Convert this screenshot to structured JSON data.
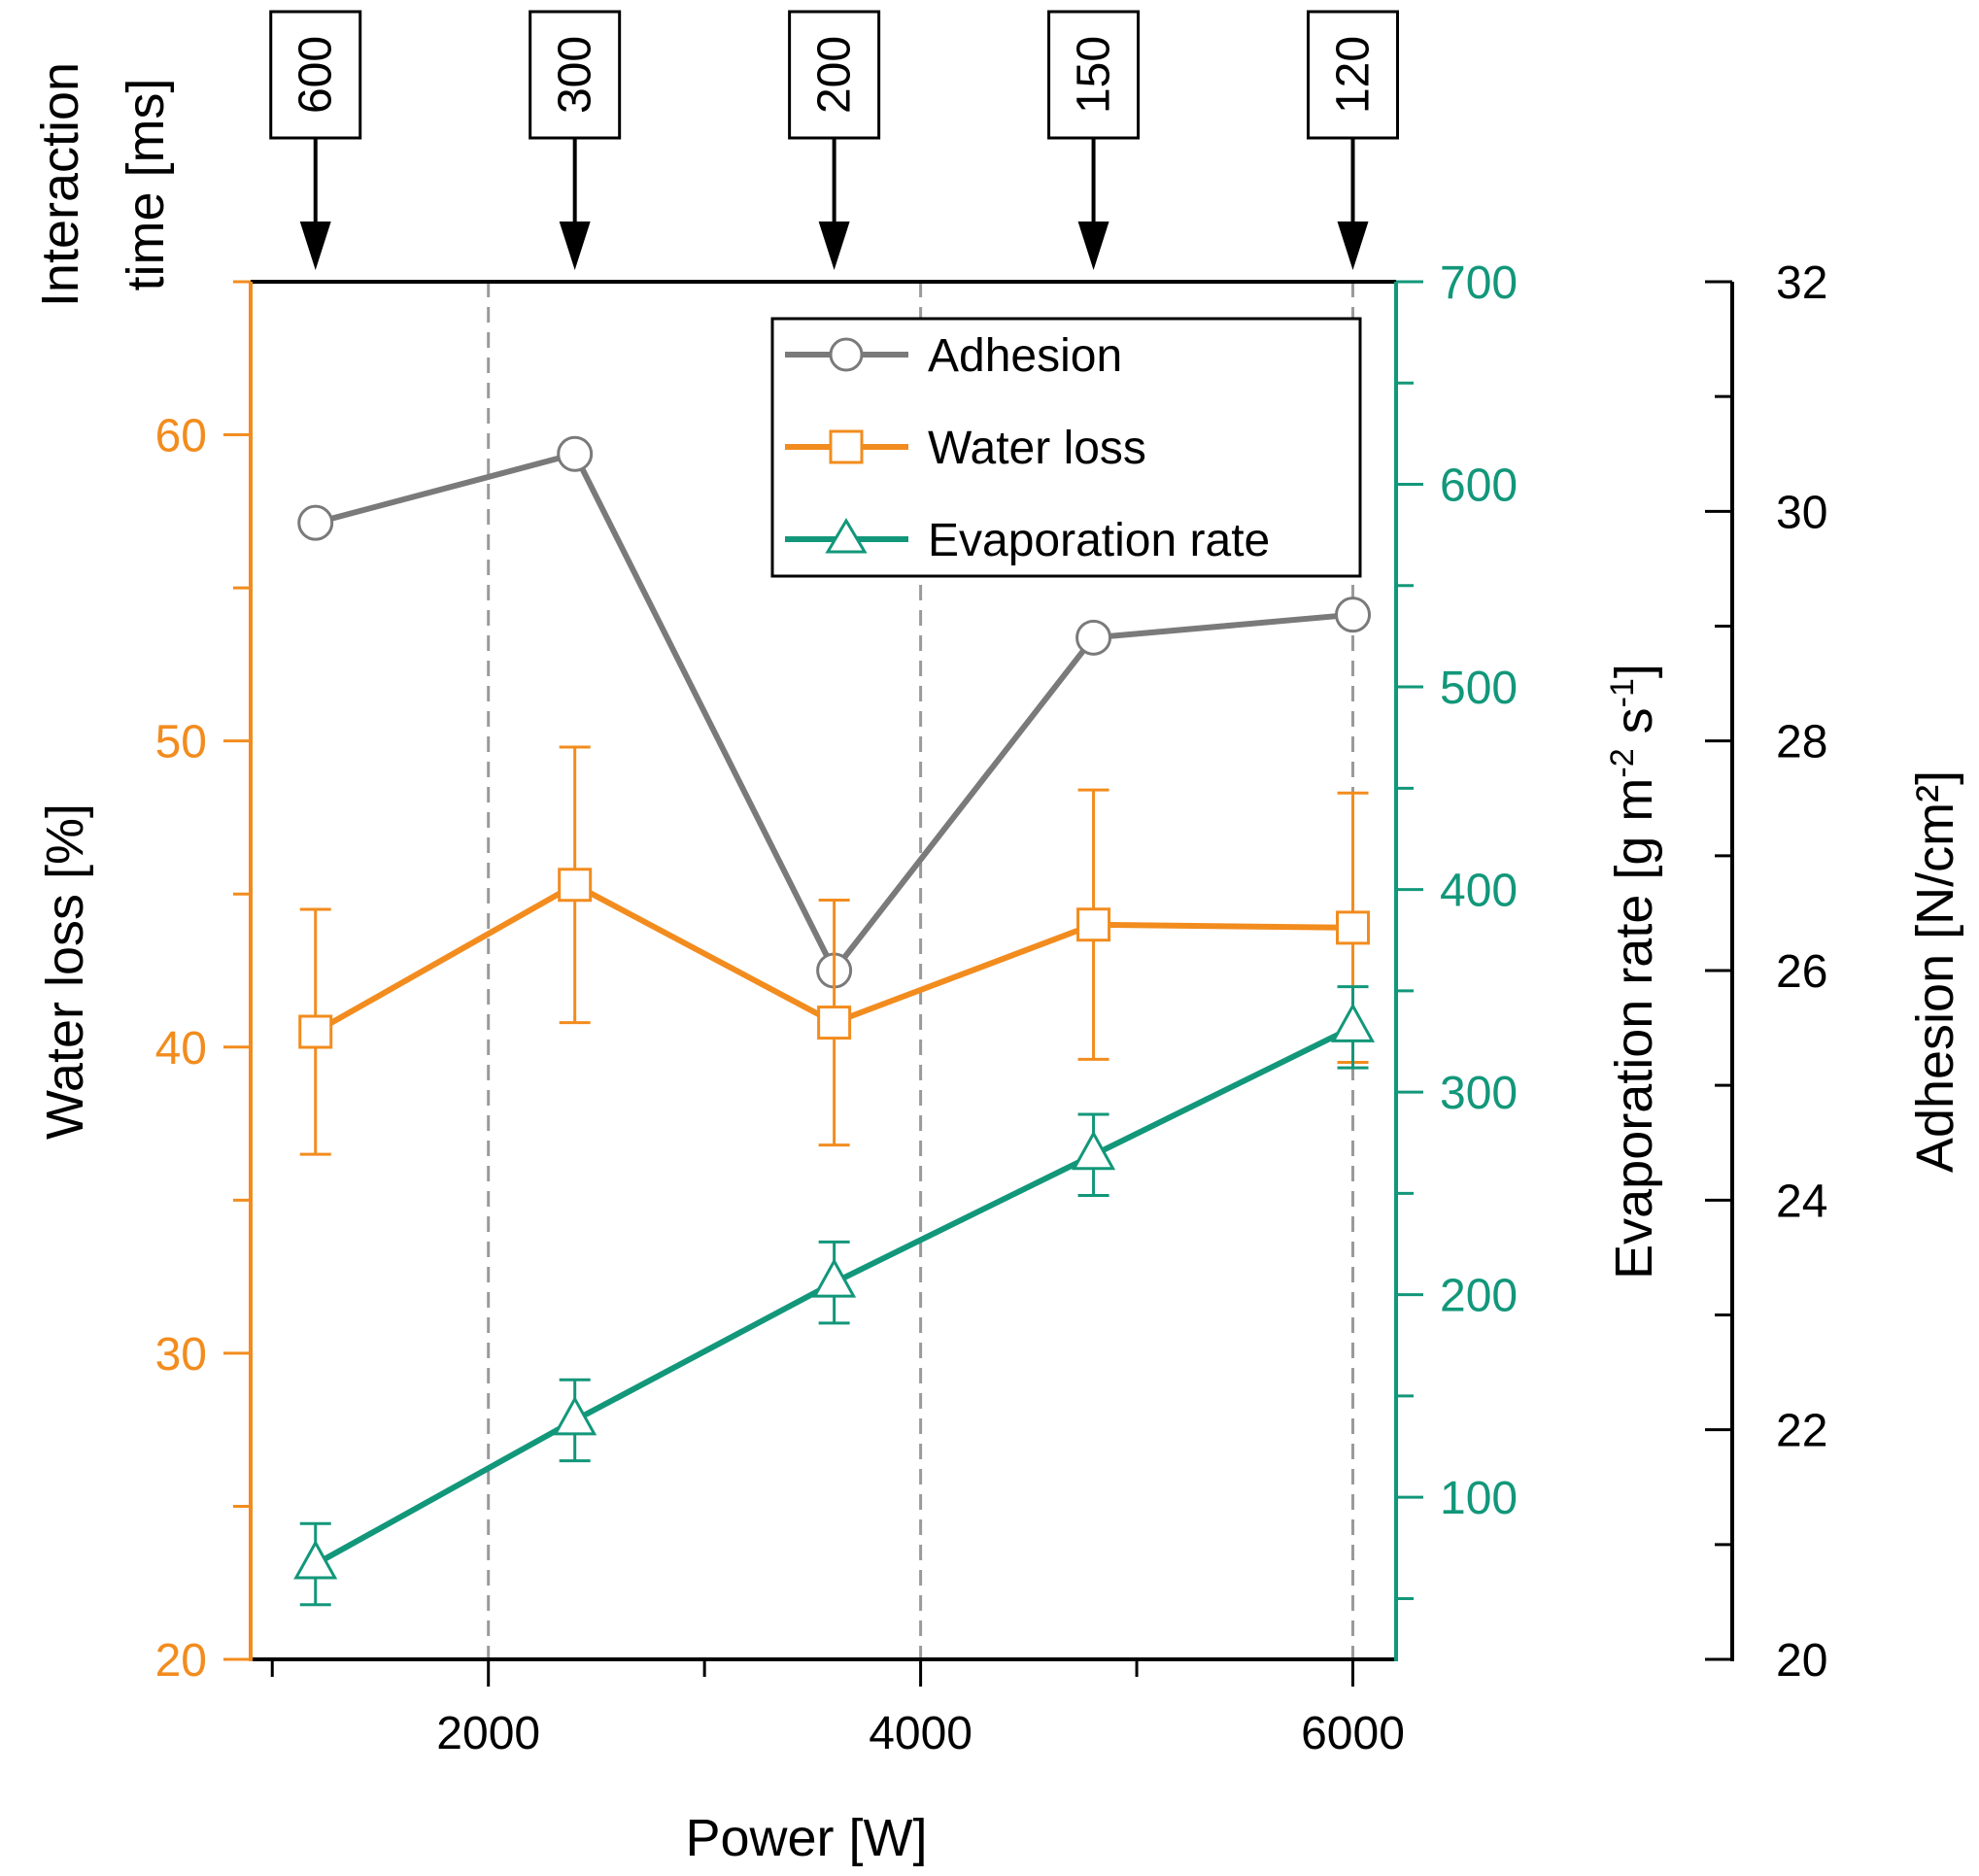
{
  "chart_data": {
    "type": "line",
    "x": [
      1200,
      2400,
      3600,
      4800,
      6000
    ],
    "xlabel": "Power [W]",
    "xlim": [
      900,
      6200
    ],
    "xticks": [
      2000,
      4000,
      6000
    ],
    "xtick_labels": [
      "2000",
      "4000",
      "6000"
    ],
    "top_axis": {
      "title_line1": "Interaction",
      "title_line2": "time [ms]",
      "labels": [
        "600",
        "300",
        "200",
        "150",
        "120"
      ]
    },
    "axes": {
      "water": {
        "label": "Water loss [%]",
        "ylim": [
          20,
          65
        ],
        "ticks": [
          20,
          30,
          40,
          50,
          60
        ],
        "tick_labels": [
          "20",
          "30",
          "40",
          "50",
          "60"
        ],
        "color": "#f28c1e"
      },
      "evap": {
        "label_main": "Evaporation rate [g m",
        "label_sup1": "-2",
        "label_mid": " s",
        "label_sup2": "-1",
        "label_end": "]",
        "ylim": [
          20,
          700
        ],
        "ticks": [
          100,
          200,
          300,
          400,
          500,
          600,
          700
        ],
        "tick_labels": [
          "100",
          "200",
          "300",
          "400",
          "500",
          "600",
          "700"
        ],
        "color": "#12977a"
      },
      "adhesion": {
        "label": "Adhesion [N/cm²]",
        "ylim": [
          20,
          32
        ],
        "ticks": [
          20,
          22,
          24,
          26,
          28,
          30,
          32
        ],
        "tick_labels": [
          "20",
          "22",
          "24",
          "26",
          "28",
          "30",
          "32"
        ],
        "color": "#000000"
      }
    },
    "series": [
      {
        "name": "Adhesion",
        "axis": "adhesion",
        "color": "#7a7a7a",
        "marker": "circle",
        "values": [
          29.9,
          30.5,
          26.0,
          28.9,
          29.1
        ]
      },
      {
        "name": "Water loss",
        "axis": "water",
        "color": "#f28c1e",
        "marker": "square",
        "values": [
          40.5,
          45.3,
          40.8,
          44.0,
          43.9
        ],
        "error": [
          4.0,
          4.5,
          4.0,
          4.4,
          4.4
        ]
      },
      {
        "name": "Evaporation rate",
        "axis": "evap",
        "color": "#12977a",
        "marker": "triangle",
        "values": [
          67,
          138,
          206,
          269,
          332
        ],
        "error": [
          20,
          20,
          20,
          20,
          20
        ]
      }
    ],
    "legend_position": "top-right",
    "grid": "vertical dashed at x ticks"
  }
}
